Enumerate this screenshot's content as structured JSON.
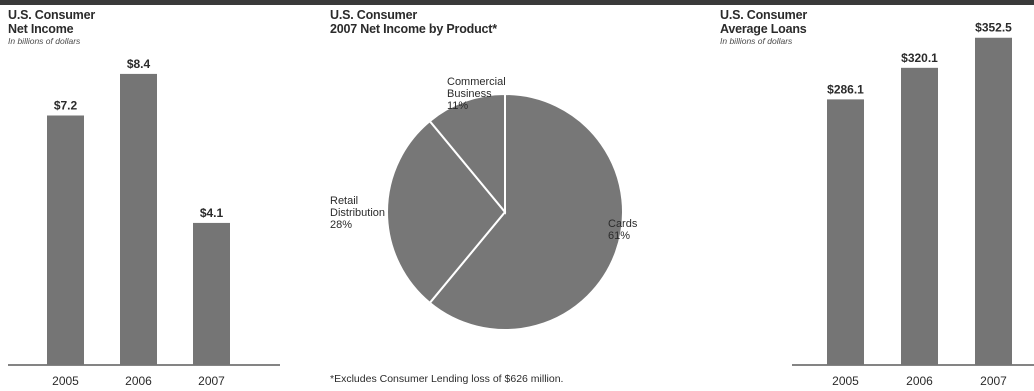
{
  "colors": {
    "bar": "#757575",
    "slice": "#777777",
    "text": "#2b2b2b",
    "rule": "#3a3a3a"
  },
  "charts": {
    "net_income": {
      "title_line1": "U.S. Consumer",
      "title_line2": "Net Income",
      "units": "In billions of dollars"
    },
    "pie": {
      "title_line1": "U.S. Consumer",
      "title_line2": "2007 Net Income by Product*"
    },
    "loans": {
      "title_line1": "U.S. Consumer",
      "title_line2": "Average Loans",
      "units": "In billions of dollars"
    }
  },
  "footnote": "*Excludes Consumer Lending loss of $626 million.",
  "chart_data": [
    {
      "type": "bar",
      "title": "U.S. Consumer Net Income",
      "ylabel": "In billions of dollars",
      "categories": [
        "2005",
        "2006",
        "2007"
      ],
      "values": [
        7.2,
        8.4,
        4.1
      ],
      "value_labels": [
        "$7.2",
        "$8.4",
        "$4.1"
      ],
      "ylim": [
        0,
        10.1
      ],
      "grid": false
    },
    {
      "type": "pie",
      "title": "U.S. Consumer 2007 Net Income by Product*",
      "slices": [
        {
          "label": "Cards",
          "percent_label": "61%",
          "value": 61
        },
        {
          "label": "Retail Distribution",
          "percent_label": "28%",
          "value": 28
        },
        {
          "label": "Commercial Business",
          "percent_label": "11%",
          "value": 11
        }
      ]
    },
    {
      "type": "bar",
      "title": "U.S. Consumer Average Loans",
      "ylabel": "In billions of dollars",
      "categories": [
        "2005",
        "2006",
        "2007"
      ],
      "values": [
        286.1,
        320.1,
        352.5
      ],
      "value_labels": [
        "$286.1",
        "$320.1",
        "$352.5"
      ],
      "ylim": [
        0,
        377
      ],
      "grid": false
    }
  ]
}
